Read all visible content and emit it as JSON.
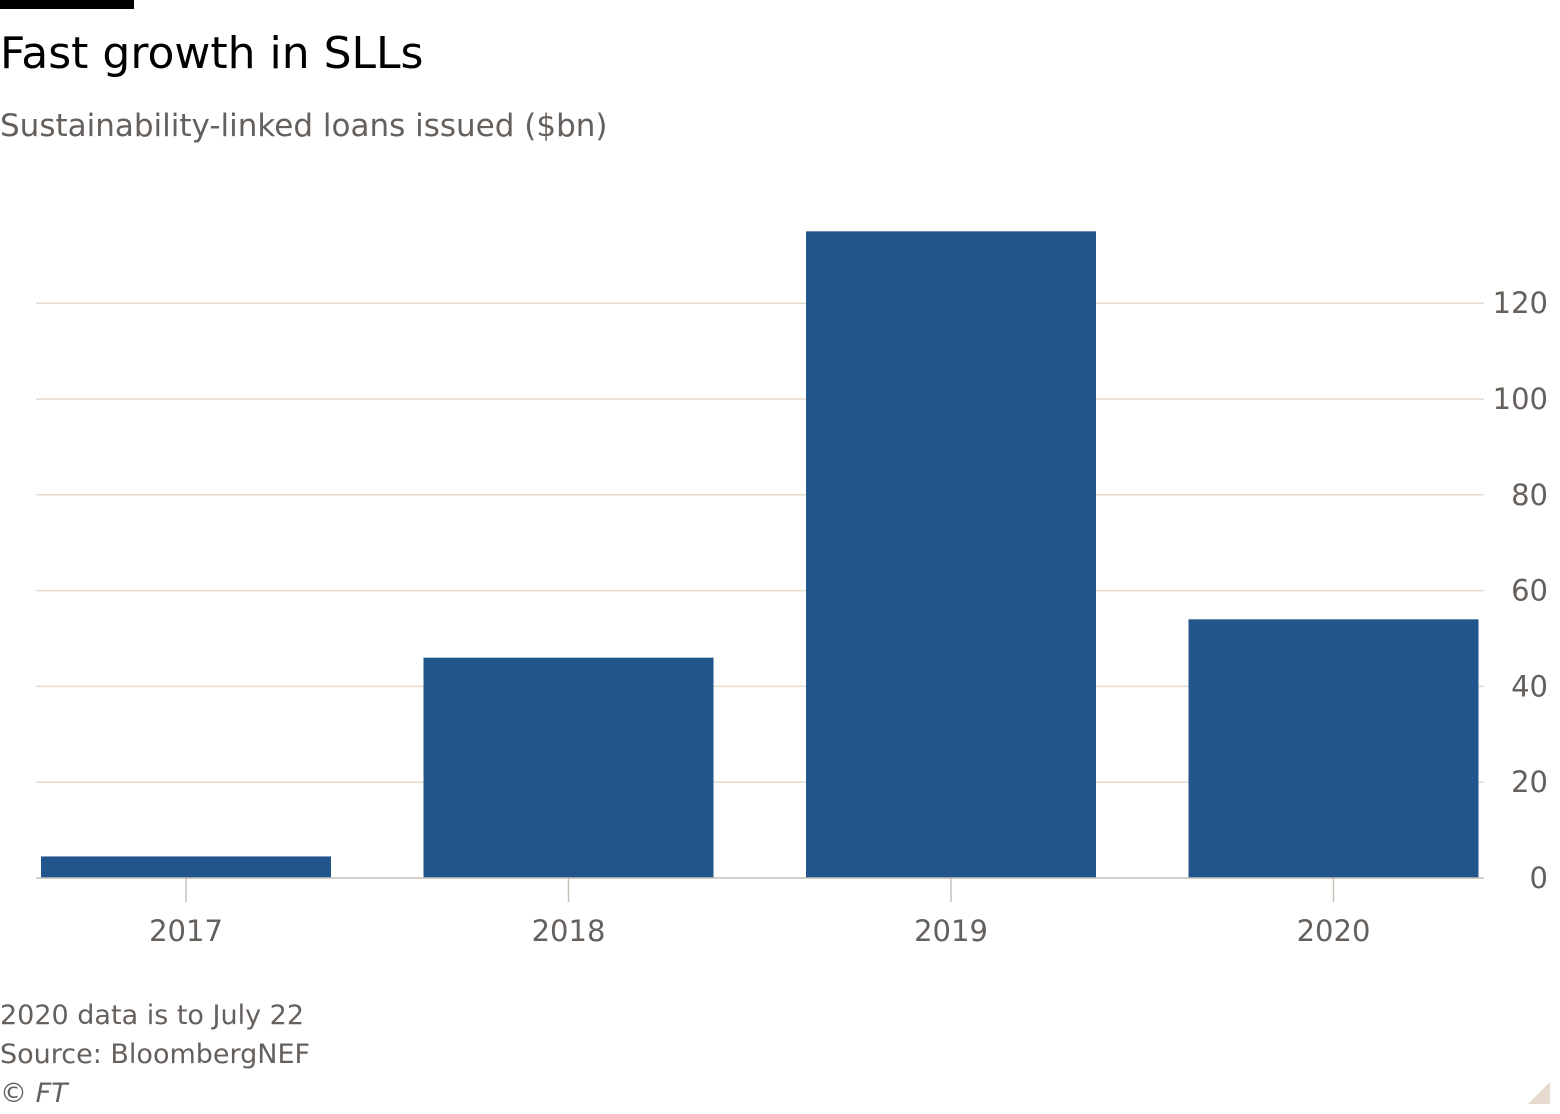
{
  "title": "Fast growth in SLLs",
  "subtitle": "Sustainability-linked loans issued ($bn)",
  "notes": {
    "note": "2020 data is to July 22",
    "source": "Source: BloombergNEF",
    "copyright": "© FT"
  },
  "colors": {
    "bar": "#21558b",
    "grid": "#e6d9ce",
    "axis": "#c8bfb7",
    "tick_text": "#66605c",
    "text": "#000000"
  },
  "chart_data": {
    "type": "bar",
    "title": "Fast growth in SLLs",
    "subtitle": "Sustainability-linked loans issued ($bn)",
    "categories": [
      "2017",
      "2018",
      "2019",
      "2020"
    ],
    "values": [
      4.5,
      46,
      135,
      54
    ],
    "ylim": [
      0,
      120
    ],
    "yticks": [
      0,
      20,
      40,
      60,
      80,
      100,
      120
    ],
    "y_axis_side": "right",
    "grid": true,
    "legend": "none"
  }
}
